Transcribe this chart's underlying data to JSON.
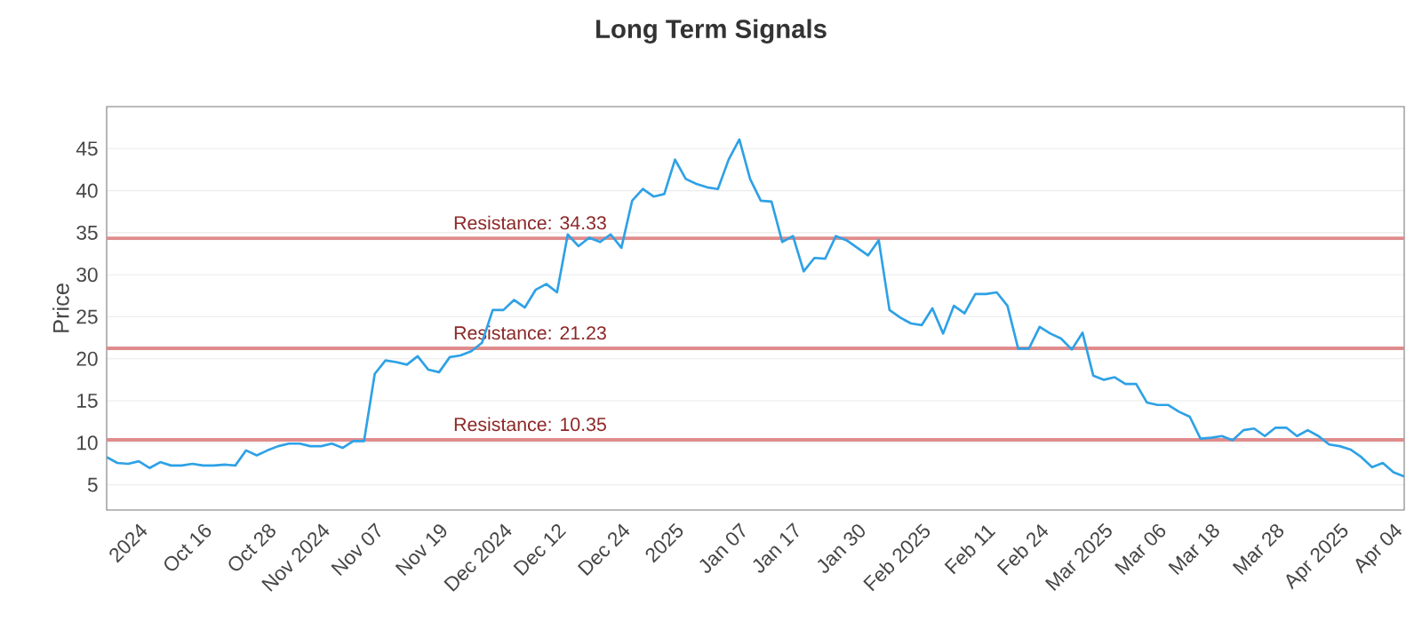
{
  "chart_data": {
    "type": "line",
    "title": "Long Term Signals",
    "ylabel": "Price",
    "categories": [
      null,
      null,
      null,
      "2024",
      null,
      null,
      null,
      null,
      null,
      "Oct 16",
      null,
      null,
      null,
      null,
      null,
      "Oct 28",
      null,
      null,
      null,
      null,
      "Nov 2024",
      null,
      null,
      null,
      null,
      "Nov 07",
      null,
      null,
      null,
      null,
      null,
      "Nov 19",
      null,
      null,
      null,
      null,
      null,
      "Dec 2024",
      null,
      null,
      null,
      null,
      "Dec 12",
      null,
      null,
      null,
      null,
      null,
      "Dec 24",
      null,
      null,
      null,
      null,
      "2025",
      null,
      null,
      null,
      null,
      null,
      "Jan 07",
      null,
      null,
      null,
      null,
      "Jan 17",
      null,
      null,
      null,
      null,
      null,
      "Jan 30",
      null,
      null,
      null,
      null,
      null,
      "Feb 2025",
      null,
      null,
      null,
      null,
      null,
      "Feb 11",
      null,
      null,
      null,
      null,
      "Feb 24",
      null,
      null,
      null,
      null,
      null,
      "Mar 2025",
      null,
      null,
      null,
      null,
      "Mar 06",
      null,
      null,
      null,
      null,
      "Mar 18",
      null,
      null,
      null,
      null,
      null,
      "Mar 28",
      null,
      null,
      null,
      null,
      null,
      "Apr 2025",
      null,
      null,
      null,
      null,
      "Apr 04",
      null
    ],
    "series": [
      {
        "color": "#2ea1e6",
        "values": [
          8.3,
          7.6,
          7.5,
          7.8,
          7.0,
          7.7,
          7.3,
          7.3,
          7.5,
          7.3,
          7.3,
          7.4,
          7.3,
          9.1,
          8.5,
          9.1,
          9.6,
          9.9,
          9.9,
          9.6,
          9.6,
          9.9,
          9.4,
          10.2,
          10.2,
          18.2,
          19.8,
          19.6,
          19.3,
          20.3,
          18.7,
          18.4,
          20.2,
          20.4,
          20.9,
          21.9,
          25.8,
          25.8,
          27.0,
          26.1,
          28.2,
          28.9,
          27.9,
          34.8,
          33.4,
          34.4,
          33.9,
          34.8,
          33.2,
          38.8,
          40.2,
          39.3,
          39.6,
          43.7,
          41.4,
          40.8,
          40.4,
          40.2,
          43.7,
          46.1,
          41.4,
          38.8,
          38.7,
          33.9,
          34.6,
          30.4,
          32.0,
          31.9,
          34.6,
          34.1,
          33.2,
          32.3,
          34.1,
          25.8,
          24.9,
          24.2,
          24.0,
          26.0,
          23.0,
          26.3,
          25.4,
          27.7,
          27.7,
          27.9,
          26.3,
          21.2,
          21.2,
          23.8,
          23.0,
          22.4,
          21.1,
          23.1,
          18.0,
          17.5,
          17.8,
          17.0,
          17.0,
          14.8,
          14.5,
          14.5,
          13.7,
          13.1,
          10.5,
          10.6,
          10.8,
          10.3,
          11.5,
          11.7,
          10.8,
          11.8,
          11.8,
          10.8,
          11.5,
          10.8,
          9.8,
          9.6,
          9.2,
          8.3,
          7.1,
          7.6,
          6.5,
          6.0
        ]
      }
    ],
    "ylim": [
      2,
      50
    ],
    "yticks": [
      5,
      10,
      15,
      20,
      25,
      30,
      35,
      40,
      45
    ],
    "ref_lines": [
      {
        "axis": "y",
        "value": 34.33,
        "label": "Resistance: 34.33",
        "color": "#e08c8c"
      },
      {
        "axis": "y",
        "value": 21.23,
        "label": "Resistance: 21.23",
        "color": "#e08c8c"
      },
      {
        "axis": "y",
        "value": 10.35,
        "label": "Resistance: 10.35",
        "color": "#e08c8c"
      }
    ],
    "grid": "y"
  }
}
